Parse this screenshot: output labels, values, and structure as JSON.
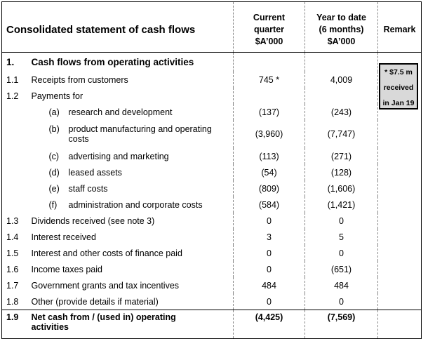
{
  "header": {
    "title": "Consolidated statement of cash flows",
    "col_current": [
      "Current",
      "quarter",
      "$A’000"
    ],
    "col_ytd": [
      "Year to date",
      "(6 months)",
      "$A’000"
    ],
    "col_remark": "Remark"
  },
  "section": {
    "num": "1.",
    "label": "Cash flows from operating activities"
  },
  "rows": [
    {
      "num": "1.1",
      "label": "Receipts from customers",
      "current": "745 *",
      "ytd": "4,009"
    },
    {
      "num": "1.2",
      "label": "Payments for",
      "current": "",
      "ytd": ""
    },
    {
      "letter": "(a)",
      "label": "research and development",
      "current": "(137)",
      "ytd": "(243)"
    },
    {
      "letter": "(b)",
      "label": "product manufacturing and operating costs",
      "current": "(3,960)",
      "ytd": "(7,747)"
    },
    {
      "letter": "(c)",
      "label": "advertising and marketing",
      "current": "(113)",
      "ytd": "(271)"
    },
    {
      "letter": "(d)",
      "label": "leased assets",
      "current": "(54)",
      "ytd": "(128)"
    },
    {
      "letter": "(e)",
      "label": "staff costs",
      "current": "(809)",
      "ytd": "(1,606)"
    },
    {
      "letter": "(f)",
      "label": "administration and corporate costs",
      "current": "(584)",
      "ytd": "(1,421)"
    },
    {
      "num": "1.3",
      "label": "Dividends received (see note 3)",
      "current": "0",
      "ytd": "0"
    },
    {
      "num": "1.4",
      "label": "Interest received",
      "current": "3",
      "ytd": "5"
    },
    {
      "num": "1.5",
      "label": "Interest and other costs of finance paid",
      "current": "0",
      "ytd": "0"
    },
    {
      "num": "1.6",
      "label": "Income taxes paid",
      "current": "0",
      "ytd": "(651)"
    },
    {
      "num": "1.7",
      "label": "Government grants and tax incentives",
      "current": "484",
      "ytd": "484"
    },
    {
      "num": "1.8",
      "label": "Other (provide details if material)",
      "current": "0",
      "ytd": "0"
    }
  ],
  "total": {
    "num": "1.9",
    "label_line1": "Net cash from / (used in) operating",
    "label_line2": "activities",
    "current": "(4,425)",
    "ytd": "(7,569)"
  },
  "remark_note": [
    "* $7.5 m",
    "received",
    "in Jan 19"
  ]
}
